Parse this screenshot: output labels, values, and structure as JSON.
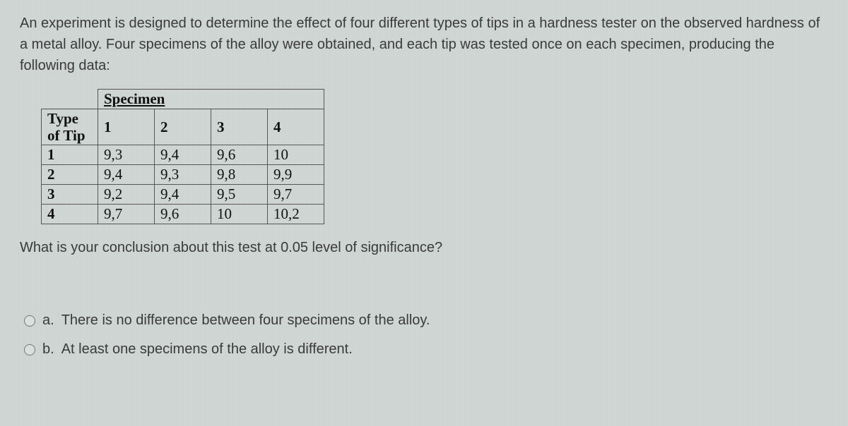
{
  "question": {
    "intro": "An experiment is designed to determine the effect of four different types of tips in a hardness tester on the observed hardness of a metal alloy. Four specimens of the alloy were obtained, and each tip was tested once on each specimen, producing the following data:",
    "followup": "What is your conclusion about this test at 0.05 level of significance?"
  },
  "table": {
    "specimen_label": "Specimen",
    "row_label_line1": "Type",
    "row_label_line2": "of Tip",
    "col_headers": [
      "1",
      "2",
      "3",
      "4"
    ],
    "row_headers": [
      "1",
      "2",
      "3",
      "4"
    ],
    "rows": [
      [
        "9,3",
        "9,4",
        "9,6",
        "10"
      ],
      [
        "9,4",
        "9,3",
        "9,8",
        "9,9"
      ],
      [
        "9,2",
        "9,4",
        "9,5",
        "9,7"
      ],
      [
        "9,7",
        "9,6",
        "10",
        "10,2"
      ]
    ]
  },
  "options": {
    "a_prefix": "a.",
    "a_text": "There is no difference between four specimens of the alloy.",
    "b_prefix": "b.",
    "b_text": "At least one specimens of the alloy is different."
  }
}
